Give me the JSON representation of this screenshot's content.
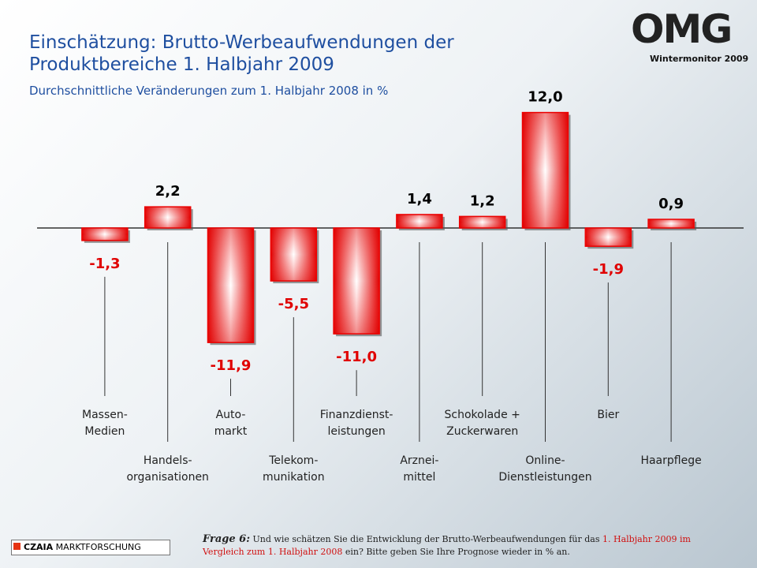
{
  "brand": {
    "logo": "OMG",
    "label": "Wintermonitor 2009"
  },
  "chart_data": {
    "type": "bar",
    "title_lines": [
      "Einschätzung: Brutto-Werbeaufwendungen der",
      "Produktbereiche 1. Halbjahr 2009"
    ],
    "subtitle": "Durchschnittliche Veränderungen zum 1. Halbjahr 2008 in %",
    "categories": [
      [
        "Massen-",
        "Medien"
      ],
      [
        "Handels-",
        "organisationen"
      ],
      [
        "Auto-",
        "markt"
      ],
      [
        "Telekom-",
        "munikation"
      ],
      [
        "Finanzdienst-",
        "leistungen"
      ],
      [
        "Arznei-",
        "mittel"
      ],
      [
        "Schokolade +",
        "Zuckerwaren"
      ],
      [
        "Online-",
        "Dienstleistungen"
      ],
      [
        "Bier"
      ],
      [
        "Haarpflege"
      ]
    ],
    "values": [
      -1.3,
      2.2,
      -11.9,
      -5.5,
      -11.0,
      1.4,
      1.2,
      12.0,
      -1.9,
      0.9
    ],
    "value_labels": [
      "-1,3",
      "2,2",
      "-11,9",
      "-5,5",
      "-11,0",
      "1,4",
      "1,2",
      "12,0",
      "-1,9",
      "0,9"
    ],
    "color": "#ee0000",
    "negative_label_color": "#e00000",
    "positive_label_color": "#000000"
  },
  "footer": {
    "company_bold": "CZAIA",
    "company": "MARKTFORSCHUNG",
    "question_label": "Frage 6:",
    "question_start": "Und wie schätzen Sie die Entwicklung der Brutto-Werbeaufwendungen für das",
    "question_highlight": "1. Halbjahr 2009 im Vergleich zum 1. Halbjahr 2008",
    "question_end": "ein? Bitte geben Sie Ihre Prognose wieder in % an."
  }
}
